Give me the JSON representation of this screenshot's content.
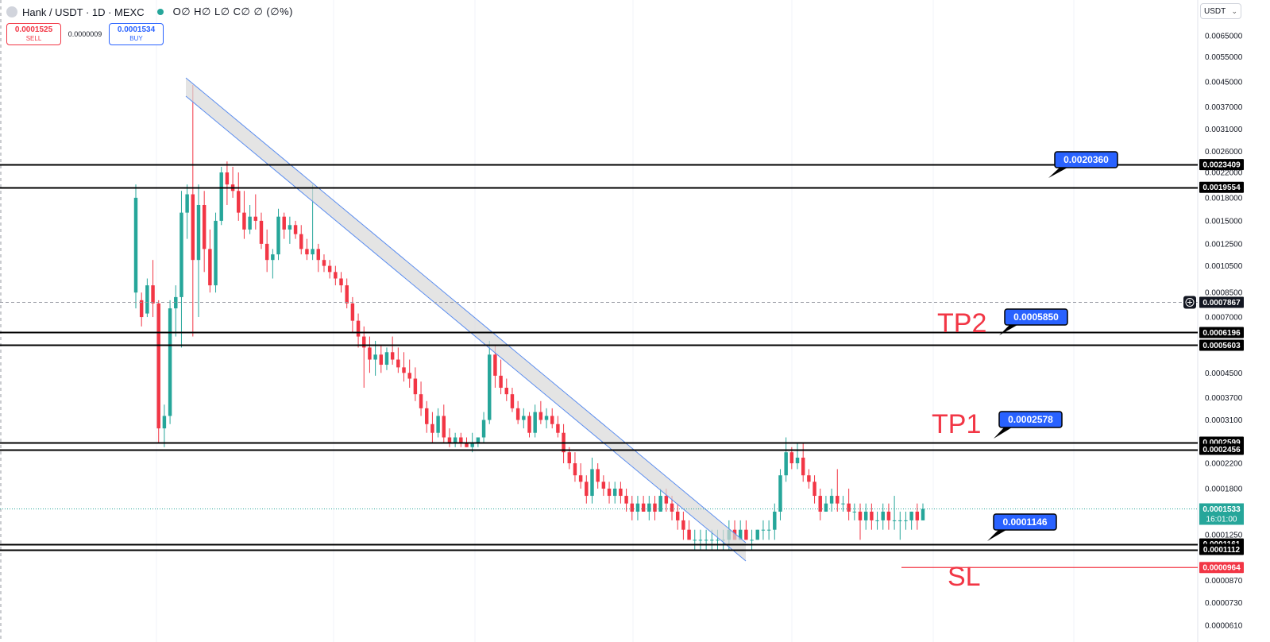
{
  "header": {
    "symbol": "Hank / USDT · 1D · MEXC",
    "ohlc": "O∅ H∅ L∅ C∅ ∅ (∅%)",
    "market_status_color": "#26a69a"
  },
  "trade": {
    "sell_price": "0.0001525",
    "sell_label": "SELL",
    "spread": "0.0000009",
    "buy_price": "0.0001534",
    "buy_label": "BUY"
  },
  "currency_selector": {
    "value": "USDT"
  },
  "labels": {
    "tp2": "TP2",
    "tp1": "TP1",
    "sl": "SL"
  },
  "chart_data": {
    "type": "candlestick",
    "y_scale": "log",
    "ylim": [
      5.8e-05,
      0.007
    ],
    "y_ticks": [
      "0.0065000",
      "0.0055000",
      "0.0045000",
      "0.0037000",
      "0.0031000",
      "0.0026000",
      "0.0022000",
      "0.0018000",
      "0.0015000",
      "0.0012500",
      "0.0010500",
      "0.0008500",
      "0.0007000",
      "0.0004500",
      "0.0003700",
      "0.0003100",
      "0.0002200",
      "0.0001800",
      "0.0001250",
      "0.0000870",
      "0.0000730",
      "0.0000610"
    ],
    "candles": [
      {
        "o": 0.00085,
        "h": 0.002,
        "l": 0.00075,
        "c": 0.0018
      },
      {
        "o": 0.0008,
        "h": 0.00085,
        "l": 0.00065,
        "c": 0.0007
      },
      {
        "o": 0.00072,
        "h": 0.00095,
        "l": 0.0007,
        "c": 0.0009
      },
      {
        "o": 0.0009,
        "h": 0.0011,
        "l": 0.0007,
        "c": 0.00078
      },
      {
        "o": 0.00078,
        "h": 0.0008,
        "l": 0.00026,
        "c": 0.00029
      },
      {
        "o": 0.00029,
        "h": 0.00035,
        "l": 0.00025,
        "c": 0.00032
      },
      {
        "o": 0.00032,
        "h": 0.0008,
        "l": 0.0003,
        "c": 0.00075
      },
      {
        "o": 0.00075,
        "h": 0.0009,
        "l": 0.0006,
        "c": 0.00082
      },
      {
        "o": 0.00082,
        "h": 0.0019,
        "l": 0.00055,
        "c": 0.0016
      },
      {
        "o": 0.0016,
        "h": 0.002,
        "l": 0.0013,
        "c": 0.00185
      },
      {
        "o": 0.00185,
        "h": 0.0044,
        "l": 0.0006,
        "c": 0.0011
      },
      {
        "o": 0.0011,
        "h": 0.002,
        "l": 0.0007,
        "c": 0.0017
      },
      {
        "o": 0.0017,
        "h": 0.0019,
        "l": 0.001,
        "c": 0.0012
      },
      {
        "o": 0.0012,
        "h": 0.0014,
        "l": 0.00085,
        "c": 0.0009
      },
      {
        "o": 0.0009,
        "h": 0.0016,
        "l": 0.00085,
        "c": 0.0015
      },
      {
        "o": 0.0015,
        "h": 0.0023,
        "l": 0.00145,
        "c": 0.0022
      },
      {
        "o": 0.0022,
        "h": 0.0024,
        "l": 0.0017,
        "c": 0.002
      },
      {
        "o": 0.002,
        "h": 0.0023,
        "l": 0.0018,
        "c": 0.0019
      },
      {
        "o": 0.0019,
        "h": 0.0022,
        "l": 0.0015,
        "c": 0.0016
      },
      {
        "o": 0.0016,
        "h": 0.0019,
        "l": 0.0013,
        "c": 0.0014
      },
      {
        "o": 0.0014,
        "h": 0.0017,
        "l": 0.00135,
        "c": 0.00155
      },
      {
        "o": 0.00155,
        "h": 0.00185,
        "l": 0.0014,
        "c": 0.0015
      },
      {
        "o": 0.0015,
        "h": 0.0016,
        "l": 0.0012,
        "c": 0.00125
      },
      {
        "o": 0.00125,
        "h": 0.0014,
        "l": 0.001,
        "c": 0.0011
      },
      {
        "o": 0.0011,
        "h": 0.0012,
        "l": 0.00095,
        "c": 0.00115
      },
      {
        "o": 0.00115,
        "h": 0.00165,
        "l": 0.0011,
        "c": 0.00155
      },
      {
        "o": 0.00155,
        "h": 0.0016,
        "l": 0.0013,
        "c": 0.0014
      },
      {
        "o": 0.0014,
        "h": 0.00155,
        "l": 0.00125,
        "c": 0.00145
      },
      {
        "o": 0.00145,
        "h": 0.0015,
        "l": 0.0013,
        "c": 0.00135
      },
      {
        "o": 0.00135,
        "h": 0.00145,
        "l": 0.00115,
        "c": 0.0012
      },
      {
        "o": 0.0012,
        "h": 0.0013,
        "l": 0.0011,
        "c": 0.00115
      },
      {
        "o": 0.00115,
        "h": 0.002,
        "l": 0.0011,
        "c": 0.0012
      },
      {
        "o": 0.0012,
        "h": 0.00125,
        "l": 0.001,
        "c": 0.0011
      },
      {
        "o": 0.0011,
        "h": 0.00115,
        "l": 0.001,
        "c": 0.00105
      },
      {
        "o": 0.00105,
        "h": 0.0011,
        "l": 0.00095,
        "c": 0.001
      },
      {
        "o": 0.001,
        "h": 0.00105,
        "l": 0.0009,
        "c": 0.00095
      },
      {
        "o": 0.00095,
        "h": 0.001,
        "l": 0.00085,
        "c": 0.0009
      },
      {
        "o": 0.0009,
        "h": 0.00095,
        "l": 0.00075,
        "c": 0.00078
      },
      {
        "o": 0.00078,
        "h": 0.00082,
        "l": 0.00062,
        "c": 0.00068
      },
      {
        "o": 0.00068,
        "h": 0.00072,
        "l": 0.00055,
        "c": 0.0006
      },
      {
        "o": 0.0006,
        "h": 0.00065,
        "l": 0.0004,
        "c": 0.00055
      },
      {
        "o": 0.00055,
        "h": 0.0006,
        "l": 0.00045,
        "c": 0.0005
      },
      {
        "o": 0.0005,
        "h": 0.00058,
        "l": 0.00044,
        "c": 0.00052
      },
      {
        "o": 0.00052,
        "h": 0.00056,
        "l": 0.00045,
        "c": 0.00048
      },
      {
        "o": 0.00048,
        "h": 0.00055,
        "l": 0.00046,
        "c": 0.00053
      },
      {
        "o": 0.00053,
        "h": 0.0006,
        "l": 0.00048,
        "c": 0.0005
      },
      {
        "o": 0.0005,
        "h": 0.00055,
        "l": 0.00045,
        "c": 0.00047
      },
      {
        "o": 0.00047,
        "h": 0.00053,
        "l": 0.00042,
        "c": 0.00045
      },
      {
        "o": 0.00045,
        "h": 0.0005,
        "l": 0.0004,
        "c": 0.00043
      },
      {
        "o": 0.00043,
        "h": 0.00047,
        "l": 0.00036,
        "c": 0.00038
      },
      {
        "o": 0.00038,
        "h": 0.00042,
        "l": 0.00032,
        "c": 0.00034
      },
      {
        "o": 0.00034,
        "h": 0.00036,
        "l": 0.00028,
        "c": 0.0003
      },
      {
        "o": 0.0003,
        "h": 0.00033,
        "l": 0.00026,
        "c": 0.00028
      },
      {
        "o": 0.00028,
        "h": 0.00034,
        "l": 0.00027,
        "c": 0.00032
      },
      {
        "o": 0.00032,
        "h": 0.00035,
        "l": 0.00026,
        "c": 0.00027
      },
      {
        "o": 0.00027,
        "h": 0.00029,
        "l": 0.00025,
        "c": 0.00026
      },
      {
        "o": 0.00026,
        "h": 0.00028,
        "l": 0.00025,
        "c": 0.00027
      },
      {
        "o": 0.00027,
        "h": 0.00028,
        "l": 0.00025,
        "c": 0.00026
      },
      {
        "o": 0.00026,
        "h": 0.00027,
        "l": 0.00025,
        "c": 0.00025
      },
      {
        "o": 0.00025,
        "h": 0.00028,
        "l": 0.00024,
        "c": 0.00026
      },
      {
        "o": 0.00026,
        "h": 0.00027,
        "l": 0.00025,
        "c": 0.00027
      },
      {
        "o": 0.00027,
        "h": 0.00033,
        "l": 0.00026,
        "c": 0.00031
      },
      {
        "o": 0.00031,
        "h": 0.00058,
        "l": 0.0003,
        "c": 0.00052
      },
      {
        "o": 0.00052,
        "h": 0.00056,
        "l": 0.0004,
        "c": 0.00044
      },
      {
        "o": 0.00044,
        "h": 0.0005,
        "l": 0.00038,
        "c": 0.0004
      },
      {
        "o": 0.0004,
        "h": 0.00043,
        "l": 0.00036,
        "c": 0.00038
      },
      {
        "o": 0.00038,
        "h": 0.0004,
        "l": 0.00033,
        "c": 0.00034
      },
      {
        "o": 0.00034,
        "h": 0.00036,
        "l": 0.0003,
        "c": 0.00031
      },
      {
        "o": 0.00031,
        "h": 0.00034,
        "l": 0.00029,
        "c": 0.00032
      },
      {
        "o": 0.00032,
        "h": 0.00033,
        "l": 0.00027,
        "c": 0.00028
      },
      {
        "o": 0.00028,
        "h": 0.00035,
        "l": 0.00027,
        "c": 0.00033
      },
      {
        "o": 0.00033,
        "h": 0.00036,
        "l": 0.0003,
        "c": 0.00031
      },
      {
        "o": 0.00031,
        "h": 0.00034,
        "l": 0.00029,
        "c": 0.00032
      },
      {
        "o": 0.00032,
        "h": 0.00034,
        "l": 0.00029,
        "c": 0.0003
      },
      {
        "o": 0.0003,
        "h": 0.00032,
        "l": 0.00027,
        "c": 0.00028
      },
      {
        "o": 0.00028,
        "h": 0.0003,
        "l": 0.00022,
        "c": 0.00024
      },
      {
        "o": 0.00024,
        "h": 0.00025,
        "l": 0.00021,
        "c": 0.00022
      },
      {
        "o": 0.00022,
        "h": 0.00024,
        "l": 0.00019,
        "c": 0.0002
      },
      {
        "o": 0.0002,
        "h": 0.00022,
        "l": 0.00018,
        "c": 0.00019
      },
      {
        "o": 0.00019,
        "h": 0.0002,
        "l": 0.00016,
        "c": 0.00017
      },
      {
        "o": 0.00017,
        "h": 0.00023,
        "l": 0.00016,
        "c": 0.00021
      },
      {
        "o": 0.00021,
        "h": 0.00022,
        "l": 0.00018,
        "c": 0.00019
      },
      {
        "o": 0.00019,
        "h": 0.0002,
        "l": 0.00017,
        "c": 0.00018
      },
      {
        "o": 0.00018,
        "h": 0.00019,
        "l": 0.00016,
        "c": 0.00017
      },
      {
        "o": 0.00017,
        "h": 0.00019,
        "l": 0.00016,
        "c": 0.00018
      },
      {
        "o": 0.00018,
        "h": 0.00019,
        "l": 0.00016,
        "c": 0.00017
      },
      {
        "o": 0.00017,
        "h": 0.00018,
        "l": 0.00015,
        "c": 0.00016
      },
      {
        "o": 0.00016,
        "h": 0.00017,
        "l": 0.00014,
        "c": 0.00015
      },
      {
        "o": 0.00015,
        "h": 0.00017,
        "l": 0.00014,
        "c": 0.00016
      },
      {
        "o": 0.00016,
        "h": 0.00017,
        "l": 0.00015,
        "c": 0.00015
      },
      {
        "o": 0.00015,
        "h": 0.00017,
        "l": 0.00014,
        "c": 0.00016
      },
      {
        "o": 0.00016,
        "h": 0.00017,
        "l": 0.00014,
        "c": 0.00015
      },
      {
        "o": 0.00015,
        "h": 0.00018,
        "l": 0.00015,
        "c": 0.00017
      },
      {
        "o": 0.00017,
        "h": 0.00018,
        "l": 0.00015,
        "c": 0.00016
      },
      {
        "o": 0.00016,
        "h": 0.00017,
        "l": 0.00014,
        "c": 0.00015
      },
      {
        "o": 0.00015,
        "h": 0.00016,
        "l": 0.00013,
        "c": 0.00014
      },
      {
        "o": 0.00014,
        "h": 0.00015,
        "l": 0.00012,
        "c": 0.00013
      },
      {
        "o": 0.00013,
        "h": 0.00014,
        "l": 0.00012,
        "c": 0.00012
      },
      {
        "o": 0.00012,
        "h": 0.00013,
        "l": 0.00011,
        "c": 0.00012
      },
      {
        "o": 0.00012,
        "h": 0.00013,
        "l": 0.00011,
        "c": 0.00012
      },
      {
        "o": 0.00012,
        "h": 0.00013,
        "l": 0.00011,
        "c": 0.00012
      },
      {
        "o": 0.00012,
        "h": 0.00013,
        "l": 0.00011,
        "c": 0.00012
      },
      {
        "o": 0.00012,
        "h": 0.00013,
        "l": 0.00011,
        "c": 0.00012
      },
      {
        "o": 0.00012,
        "h": 0.00013,
        "l": 0.00011,
        "c": 0.00012
      },
      {
        "o": 0.00012,
        "h": 0.00014,
        "l": 0.00011,
        "c": 0.00013
      },
      {
        "o": 0.00013,
        "h": 0.00014,
        "l": 0.00012,
        "c": 0.00012
      },
      {
        "o": 0.00012,
        "h": 0.00014,
        "l": 0.00012,
        "c": 0.00013
      },
      {
        "o": 0.00013,
        "h": 0.00014,
        "l": 0.00012,
        "c": 0.00012
      },
      {
        "o": 0.00012,
        "h": 0.00013,
        "l": 0.00011,
        "c": 0.00012
      },
      {
        "o": 0.00012,
        "h": 0.00013,
        "l": 0.00012,
        "c": 0.00013
      },
      {
        "o": 0.00013,
        "h": 0.00014,
        "l": 0.00012,
        "c": 0.00013
      },
      {
        "o": 0.00013,
        "h": 0.00014,
        "l": 0.00012,
        "c": 0.00013
      },
      {
        "o": 0.00013,
        "h": 0.00016,
        "l": 0.00012,
        "c": 0.00015
      },
      {
        "o": 0.00015,
        "h": 0.00021,
        "l": 0.00014,
        "c": 0.0002
      },
      {
        "o": 0.0002,
        "h": 0.00027,
        "l": 0.00019,
        "c": 0.00024
      },
      {
        "o": 0.00024,
        "h": 0.00025,
        "l": 0.00021,
        "c": 0.00022
      },
      {
        "o": 0.00022,
        "h": 0.00026,
        "l": 0.00021,
        "c": 0.00023
      },
      {
        "o": 0.00023,
        "h": 0.00026,
        "l": 0.00019,
        "c": 0.0002
      },
      {
        "o": 0.0002,
        "h": 0.00021,
        "l": 0.00018,
        "c": 0.00019
      },
      {
        "o": 0.00019,
        "h": 0.0002,
        "l": 0.00016,
        "c": 0.00017
      },
      {
        "o": 0.00017,
        "h": 0.00018,
        "l": 0.00014,
        "c": 0.00015
      },
      {
        "o": 0.00015,
        "h": 0.00017,
        "l": 0.00015,
        "c": 0.00016
      },
      {
        "o": 0.00016,
        "h": 0.00018,
        "l": 0.00015,
        "c": 0.00017
      },
      {
        "o": 0.00017,
        "h": 0.00021,
        "l": 0.00015,
        "c": 0.00016
      },
      {
        "o": 0.00016,
        "h": 0.00017,
        "l": 0.00015,
        "c": 0.00016
      },
      {
        "o": 0.00016,
        "h": 0.00018,
        "l": 0.00014,
        "c": 0.00015
      },
      {
        "o": 0.00015,
        "h": 0.00016,
        "l": 0.00014,
        "c": 0.00015
      },
      {
        "o": 0.00015,
        "h": 0.00016,
        "l": 0.00012,
        "c": 0.00014
      },
      {
        "o": 0.00014,
        "h": 0.00016,
        "l": 0.00013,
        "c": 0.00015
      },
      {
        "o": 0.00015,
        "h": 0.00016,
        "l": 0.00013,
        "c": 0.00014
      },
      {
        "o": 0.00014,
        "h": 0.00015,
        "l": 0.00013,
        "c": 0.00014
      },
      {
        "o": 0.00014,
        "h": 0.00016,
        "l": 0.00013,
        "c": 0.00015
      },
      {
        "o": 0.00015,
        "h": 0.00016,
        "l": 0.00013,
        "c": 0.00014
      },
      {
        "o": 0.00014,
        "h": 0.00017,
        "l": 0.00013,
        "c": 0.00014
      },
      {
        "o": 0.00014,
        "h": 0.00015,
        "l": 0.00012,
        "c": 0.00014
      },
      {
        "o": 0.00014,
        "h": 0.00015,
        "l": 0.00013,
        "c": 0.00014
      },
      {
        "o": 0.00014,
        "h": 0.00015,
        "l": 0.00013,
        "c": 0.00015
      },
      {
        "o": 0.00015,
        "h": 0.00016,
        "l": 0.00013,
        "c": 0.00014
      },
      {
        "o": 0.00014,
        "h": 0.00016,
        "l": 0.00014,
        "c": 0.0001533
      }
    ],
    "horizontal_levels": [
      {
        "value": 0.0023409,
        "label": "0.0023409"
      },
      {
        "value": 0.0019554,
        "label": "0.0019554"
      },
      {
        "value": 0.0006196,
        "label": "0.0006196"
      },
      {
        "value": 0.0005603,
        "label": "0.0005603"
      },
      {
        "value": 0.0002599,
        "label": "0.0002599"
      },
      {
        "value": 0.0002456,
        "label": "0.0002456"
      },
      {
        "value": 0.0001161,
        "label": "0.0001161"
      },
      {
        "value": 0.0001112,
        "label": "0.0001112"
      }
    ],
    "stop_loss": {
      "value": 9.64e-05,
      "label": "0.0000964",
      "color": "#f23645"
    },
    "crosshair": {
      "value": 0.0007867,
      "label": "0.0007867"
    },
    "last_price": {
      "value": 0.0001533,
      "label": "0.0001533",
      "countdown": "16:01:00",
      "color": "#26a69a"
    },
    "callouts": [
      {
        "value": 0.002036,
        "label": "0.0020360"
      },
      {
        "value": 0.000585,
        "label": "0.0005850"
      },
      {
        "value": 0.0002578,
        "label": "0.0002578"
      },
      {
        "value": 0.0001146,
        "label": "0.0001146"
      }
    ],
    "colors": {
      "up": "#26a69a",
      "down": "#f23645",
      "channel_line": "#5b8def",
      "channel_fill": "#d9d9d9",
      "callout": "#2962ff"
    }
  }
}
